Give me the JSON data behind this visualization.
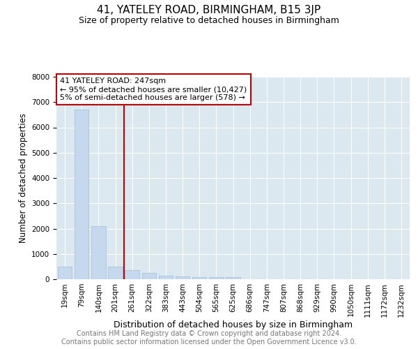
{
  "title": "41, YATELEY ROAD, BIRMINGHAM, B15 3JP",
  "subtitle": "Size of property relative to detached houses in Birmingham",
  "xlabel": "Distribution of detached houses by size in Birmingham",
  "ylabel": "Number of detached properties",
  "footer_line1": "Contains HM Land Registry data © Crown copyright and database right 2024.",
  "footer_line2": "Contains public sector information licensed under the Open Government Licence v3.0.",
  "property_label": "41 YATELEY ROAD: 247sqm",
  "annotation_line1": "← 95% of detached houses are smaller (10,427)",
  "annotation_line2": "5% of semi-detached houses are larger (578) →",
  "bar_color": "#c5d8ed",
  "bar_edge_color": "#a0bcd8",
  "vline_color": "#cc0000",
  "annotation_box_edgecolor": "#cc0000",
  "annotation_box_facecolor": "#ffffff",
  "categories": [
    "19sqm",
    "79sqm",
    "140sqm",
    "201sqm",
    "261sqm",
    "322sqm",
    "383sqm",
    "443sqm",
    "504sqm",
    "565sqm",
    "625sqm",
    "686sqm",
    "747sqm",
    "807sqm",
    "868sqm",
    "929sqm",
    "990sqm",
    "1050sqm",
    "1111sqm",
    "1172sqm",
    "1232sqm"
  ],
  "values": [
    500,
    6700,
    2100,
    500,
    350,
    250,
    150,
    100,
    80,
    70,
    70,
    0,
    0,
    0,
    0,
    0,
    0,
    0,
    0,
    0,
    0
  ],
  "ylim": [
    0,
    8000
  ],
  "yticks": [
    0,
    1000,
    2000,
    3000,
    4000,
    5000,
    6000,
    7000,
    8000
  ],
  "vline_position": 3.5,
  "bg_color": "#dce8f0",
  "grid_color": "#ffffff",
  "figsize": [
    6.0,
    5.0
  ],
  "dpi": 100,
  "title_fontsize": 11,
  "subtitle_fontsize": 9,
  "ylabel_fontsize": 8.5,
  "xlabel_fontsize": 9,
  "tick_fontsize": 7.5,
  "footer_fontsize": 7,
  "annotation_fontsize": 8
}
